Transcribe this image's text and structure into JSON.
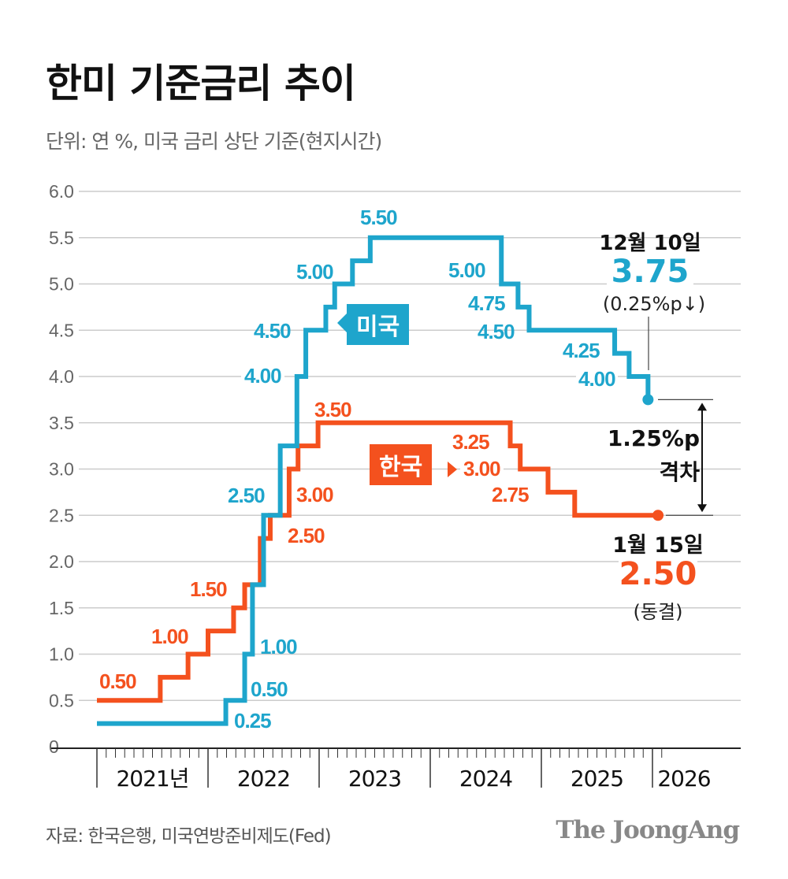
{
  "title": "한미 기준금리 추이",
  "subtitle": "단위: 연 %, 미국 금리 상단 기준(현지시간)",
  "source": "자료: 한국은행, 미국연방준비제도(Fed)",
  "brand": "The JoongAng",
  "colors": {
    "us": "#1ea5cc",
    "kr": "#f4511e",
    "grid": "#cccccc",
    "text": "#111111"
  },
  "chart_data": {
    "type": "line",
    "step": true,
    "title": "한미 기준금리 추이",
    "ylabel": "연 %",
    "ylim": [
      0,
      6.0
    ],
    "xlim": [
      2021.0,
      2026.6
    ],
    "y_ticks": [
      "0",
      "0.5",
      "1.0",
      "1.5",
      "2.0",
      "2.5",
      "3.0",
      "3.5",
      "4.0",
      "4.5",
      "5.0",
      "5.5",
      "6.0"
    ],
    "x_ticks": [
      "2021년",
      "2022",
      "2023",
      "2024",
      "2025",
      "2026"
    ],
    "grid": true,
    "series": [
      {
        "name": "미국",
        "key": "us",
        "points": [
          [
            2021.0,
            0.25
          ],
          [
            2022.16,
            0.5
          ],
          [
            2022.33,
            1.0
          ],
          [
            2022.4,
            1.75
          ],
          [
            2022.5,
            2.5
          ],
          [
            2022.65,
            3.25
          ],
          [
            2022.8,
            4.0
          ],
          [
            2022.88,
            4.5
          ],
          [
            2023.06,
            4.75
          ],
          [
            2023.14,
            5.0
          ],
          [
            2023.3,
            5.25
          ],
          [
            2023.46,
            5.5
          ],
          [
            2024.64,
            5.0
          ],
          [
            2024.79,
            4.75
          ],
          [
            2024.89,
            4.5
          ],
          [
            2025.66,
            4.25
          ],
          [
            2025.79,
            4.0
          ],
          [
            2025.96,
            3.75
          ]
        ],
        "end": 2025.96
      },
      {
        "name": "한국",
        "key": "kr",
        "points": [
          [
            2021.0,
            0.5
          ],
          [
            2021.57,
            0.75
          ],
          [
            2021.82,
            1.0
          ],
          [
            2022.0,
            1.25
          ],
          [
            2022.23,
            1.5
          ],
          [
            2022.33,
            1.75
          ],
          [
            2022.47,
            2.25
          ],
          [
            2022.56,
            2.5
          ],
          [
            2022.73,
            3.0
          ],
          [
            2022.81,
            3.25
          ],
          [
            2022.99,
            3.5
          ],
          [
            2024.72,
            3.25
          ],
          [
            2024.81,
            3.0
          ],
          [
            2025.06,
            2.75
          ],
          [
            2025.3,
            2.5
          ]
        ],
        "end": 2026.05
      }
    ],
    "data_labels": {
      "us": [
        "0.25",
        "0.50",
        "1.00",
        "2.50",
        "4.00",
        "4.50",
        "5.00",
        "5.50",
        "5.00",
        "4.75",
        "4.50",
        "4.25",
        "4.00"
      ],
      "kr": [
        "0.50",
        "1.00",
        "1.50",
        "2.50",
        "3.00",
        "3.50",
        "3.25",
        "3.00",
        "2.75"
      ]
    },
    "annotations": {
      "us_date": "12월 10일",
      "us_value": "3.75",
      "us_change": "(0.25%p↓)",
      "kr_date": "1월 15일",
      "kr_value": "2.50",
      "kr_change": "(동결)",
      "gap_value": "1.25%p",
      "gap_label": "격차"
    }
  }
}
